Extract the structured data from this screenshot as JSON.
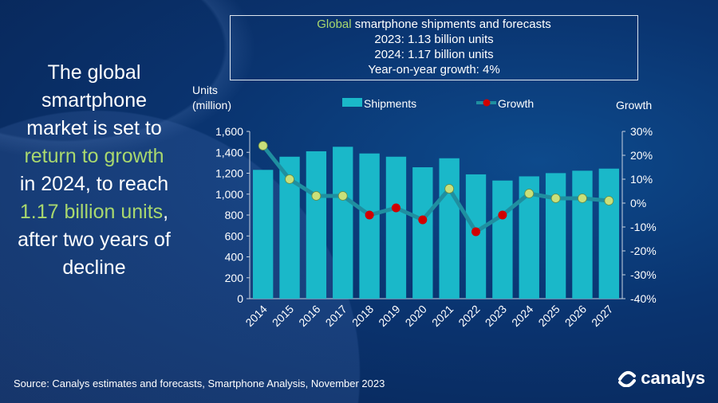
{
  "headline": {
    "parts": [
      "The global smartphone market is set to ",
      "return to growth",
      " in 2024, to reach ",
      "1.17 billion units",
      ", after two years of decline"
    ]
  },
  "infobox": {
    "title_highlight": "Global",
    "title_rest": " smartphone shipments and forecasts",
    "line2": "2023: 1.13 billion units",
    "line3": "2024: 1.17 billion units",
    "line4": "Year-on-year growth: 4%"
  },
  "source": "Source: Canalys estimates and forecasts, Smartphone Analysis, November 2023",
  "logo": "canalys",
  "colors": {
    "bar": "#1ab8c9",
    "line": "#1f8fa0",
    "positive_marker": "#c9e07a",
    "negative_marker": "#d00000",
    "highlight": "#a9d86e"
  },
  "chart_data": {
    "type": "bar",
    "categories": [
      "2014",
      "2015",
      "2016",
      "2017",
      "2018",
      "2019",
      "2020",
      "2021",
      "2022",
      "2023",
      "2024",
      "2025",
      "2026",
      "2027"
    ],
    "series": [
      {
        "name": "Shipments",
        "type": "bar",
        "axis": "left",
        "values": [
          1232,
          1358,
          1410,
          1453,
          1389,
          1358,
          1257,
          1343,
          1189,
          1130,
          1170,
          1201,
          1224,
          1244
        ]
      },
      {
        "name": "Growth",
        "type": "line",
        "axis": "right",
        "unit": "%",
        "values": [
          24,
          10,
          3,
          3,
          -5,
          -2,
          -7,
          6,
          -12,
          -5,
          4,
          2,
          2,
          1
        ]
      }
    ],
    "ylabel": "Units (million)",
    "ylabel_lines": [
      "Units",
      "(million)"
    ],
    "y2label": "Growth",
    "ylim": [
      0,
      1600
    ],
    "yticks": [
      "0",
      "200",
      "400",
      "600",
      "800",
      "1,000",
      "1,200",
      "1,400",
      "1,600"
    ],
    "y2lim": [
      -40,
      30
    ],
    "y2ticks": [
      "-40%",
      "-30%",
      "-20%",
      "-10%",
      "0%",
      "10%",
      "20%",
      "30%"
    ],
    "legend": "top",
    "grid": false
  }
}
